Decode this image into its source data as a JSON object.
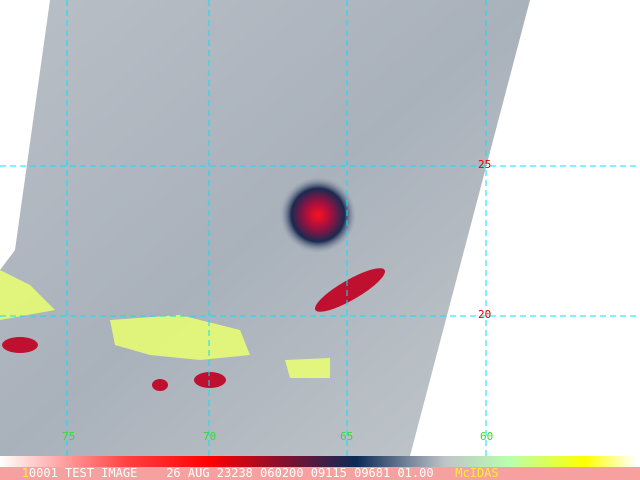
{
  "labels": {
    "lat": [
      "25",
      "20"
    ],
    "lon": [
      "75",
      "70",
      "65",
      "60"
    ]
  },
  "status": {
    "frame": "1",
    "text": "0001 TEST IMAGE",
    "date": "26 AUG 23238",
    "time": "060200",
    "f1": "09115",
    "f2": "09681",
    "f3": "01.00",
    "brand": "McIDAS"
  },
  "colors": {
    "grid": "#00e5ff",
    "lat_label": "#e00000",
    "lon_label": "#33dd33",
    "coast": "#ffff33",
    "status_bg": "#f7a0a0",
    "brand": "#ffee33"
  }
}
